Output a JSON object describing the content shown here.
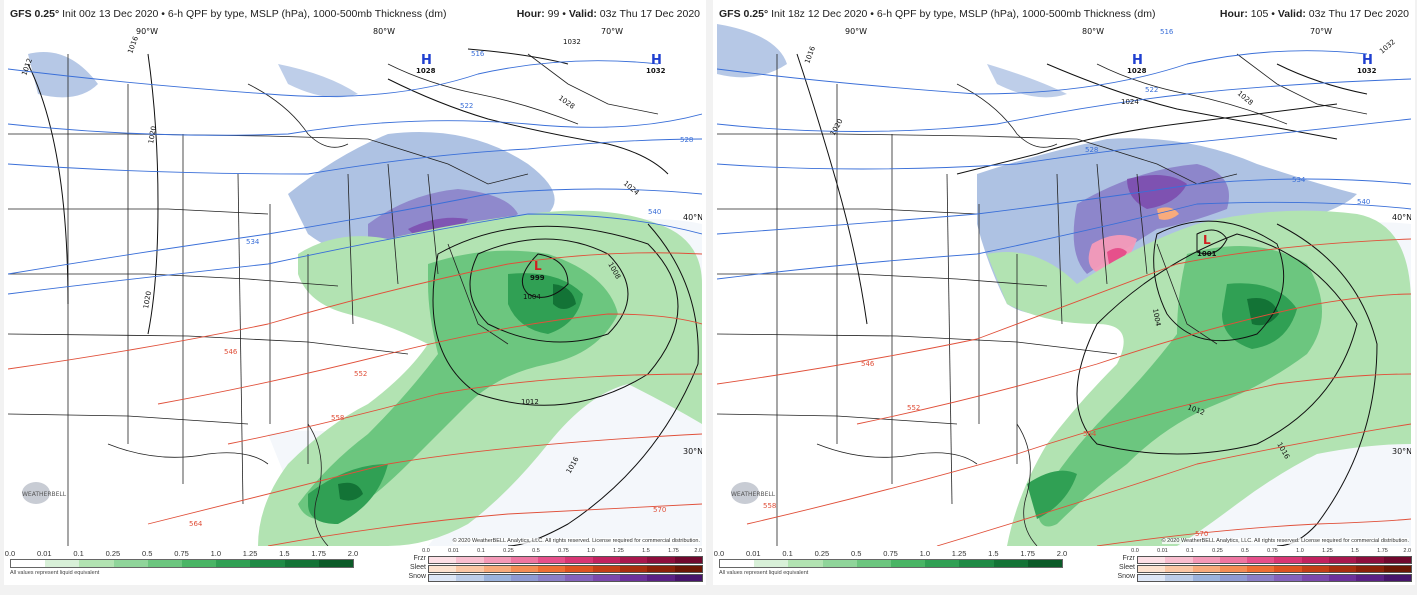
{
  "panels": [
    {
      "id": "left",
      "title_model": "GFS 0.25°",
      "title_rest": "Init 00z 13 Dec 2020 • 6-h QPF by type, MSLP (hPa), 1000-500mb Thickness (dm)",
      "hour_label": "Hour:",
      "hour_value": "99",
      "valid_label": "Valid:",
      "valid_value": "03z Thu 17 Dec 2020",
      "longitude_labels": [
        "90°W",
        "80°W",
        "70°W"
      ],
      "latitude_labels": [
        "40°N",
        "30°N"
      ],
      "highs": [
        {
          "label": "H",
          "value": "1028"
        },
        {
          "label": "H",
          "value": "1032"
        }
      ],
      "low": {
        "label": "L",
        "value": "999"
      },
      "isobar_labels": [
        "1012",
        "1016",
        "1020",
        "1020",
        "1032",
        "1028",
        "1024",
        "1008",
        "1004",
        "1012",
        "1016"
      ],
      "thickness_labels_blue": [
        "516",
        "522",
        "528",
        "534",
        "540"
      ],
      "thickness_labels_red": [
        "546",
        "552",
        "558",
        "564",
        "570"
      ],
      "copyright": "© 2020 WeatherBELL Analytics, LLC. All rights reserved. License required for commercial distribution."
    },
    {
      "id": "right",
      "title_model": "GFS 0.25°",
      "title_rest": "Init 18z 12 Dec 2020 • 6-h QPF by type, MSLP (hPa), 1000-500mb Thickness (dm)",
      "hour_label": "Hour:",
      "hour_value": "105",
      "valid_label": "Valid:",
      "valid_value": "03z Thu 17 Dec 2020",
      "longitude_labels": [
        "90°W",
        "80°W",
        "70°W"
      ],
      "latitude_labels": [
        "40°N",
        "30°N"
      ],
      "highs": [
        {
          "label": "H",
          "value": "1028"
        },
        {
          "label": "H",
          "value": "1032"
        }
      ],
      "low": {
        "label": "L",
        "value": "1001"
      },
      "isobar_labels": [
        "1016",
        "1020",
        "1024",
        "1028",
        "1032",
        "1004",
        "1012",
        "1016"
      ],
      "thickness_labels_blue": [
        "516",
        "522",
        "528",
        "534",
        "540"
      ],
      "thickness_labels_red": [
        "546",
        "552",
        "558",
        "564",
        "570"
      ],
      "copyright": "© 2020 WeatherBELL Analytics, LLC. All rights reserved. License required for commercial distribution."
    }
  ],
  "qpf_legend": {
    "ticks": [
      "0.0",
      "0.01",
      "0.1",
      "0.25",
      "0.5",
      "0.75",
      "1.0",
      "1.25",
      "1.5",
      "1.75",
      "2.0"
    ],
    "note": "All values represent liquid equivalent",
    "colors": [
      "#ffffff",
      "#d8f0d8",
      "#b2e3b2",
      "#8fd59a",
      "#6cc67f",
      "#49b565",
      "#30a054",
      "#1f8a45",
      "#137336",
      "#0b5a28"
    ]
  },
  "type_legend": {
    "ticks": [
      "0.0",
      "0.01",
      "0.1",
      "0.25",
      "0.5",
      "0.75",
      "1.0",
      "1.25",
      "1.5",
      "1.75",
      "2.0"
    ],
    "rows": [
      {
        "name": "Frzr",
        "colors": [
          "#fde0e6",
          "#f9bfd0",
          "#f49ab8",
          "#ee76a2",
          "#e6508b",
          "#d83674",
          "#c2225f",
          "#a8174d",
          "#8d0e3c",
          "#70082d"
        ]
      },
      {
        "name": "Sleet",
        "colors": [
          "#fde2cf",
          "#fbc7a5",
          "#f8ab7c",
          "#f48d55",
          "#ee6f34",
          "#de5420",
          "#c43f15",
          "#a82e0d",
          "#8b2107",
          "#6b1603"
        ]
      },
      {
        "name": "Snow",
        "colors": [
          "#dde6f5",
          "#bccde9",
          "#9bb3dd",
          "#8e9ad3",
          "#8a7fc8",
          "#8463bc",
          "#7b49ad",
          "#6c329b",
          "#5a2185",
          "#46146b"
        ]
      }
    ]
  },
  "logo_text": "WEATHERBELL",
  "colors": {
    "land": "#ffffff",
    "water": "#eef3fa",
    "isobar": "#111111",
    "thickness_cold": "#3a6fd8",
    "thickness_warm": "#e0503a",
    "high_marker": "#1f3fd0",
    "low_marker": "#d02020"
  }
}
